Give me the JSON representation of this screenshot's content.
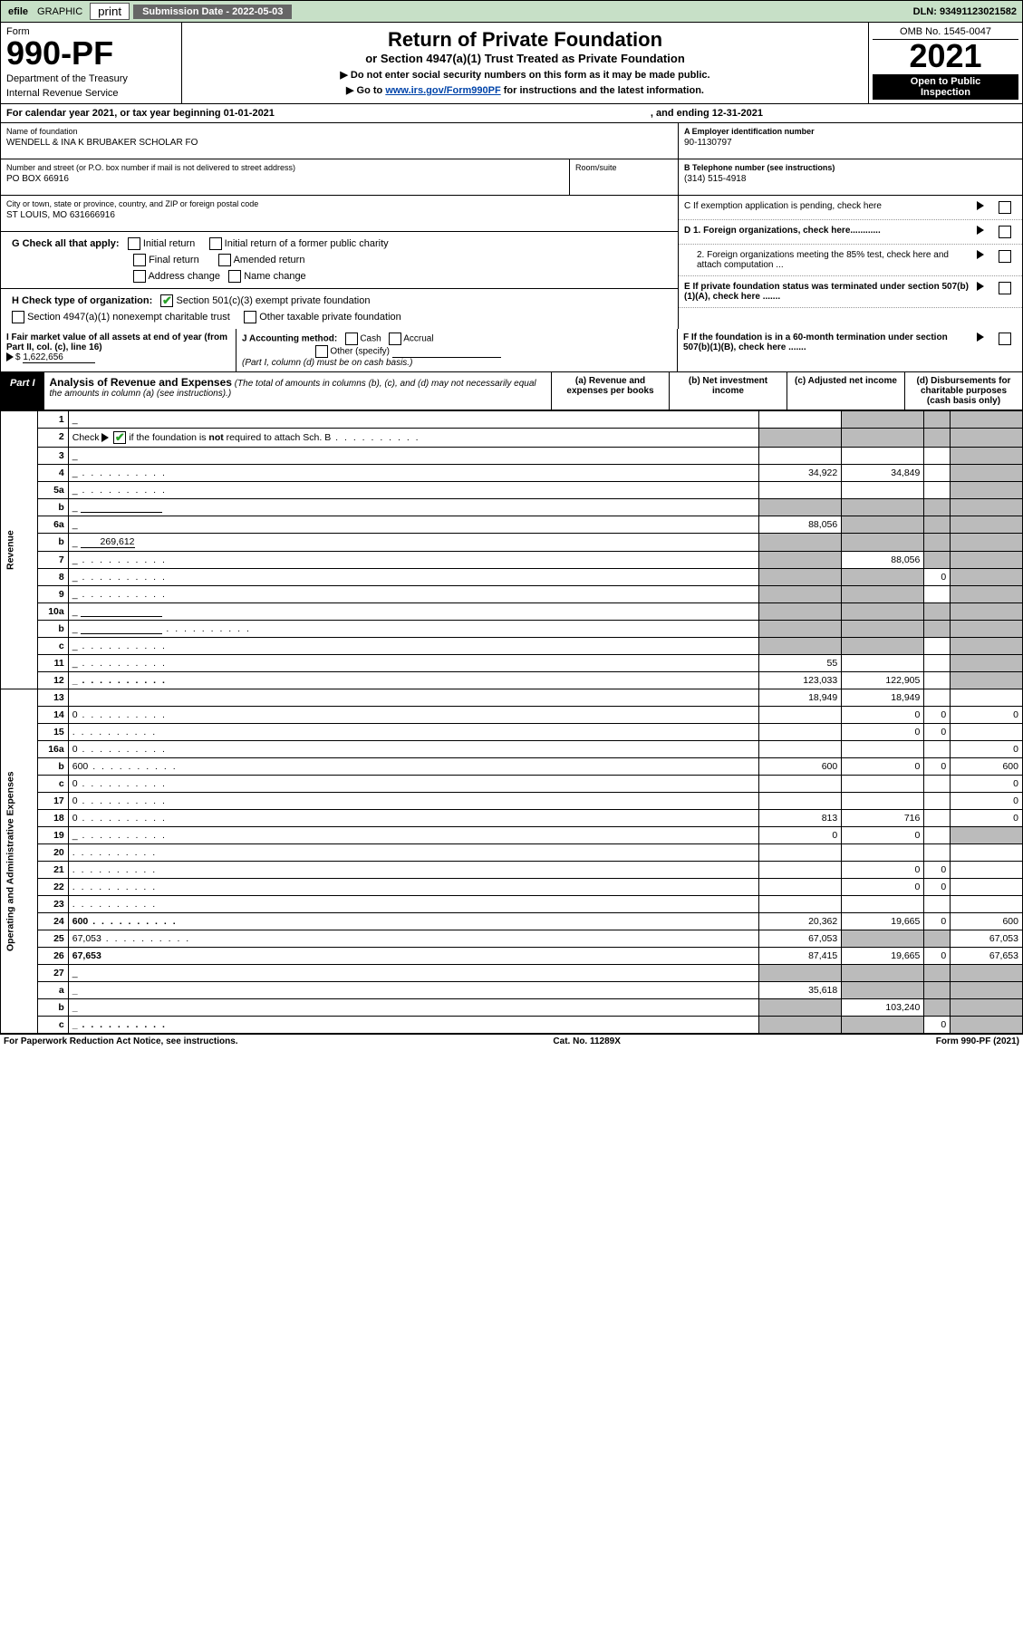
{
  "topbar": {
    "efile": "efile",
    "graphic": "GRAPHIC",
    "print": "print",
    "subdate_lbl": "Submission Date - 2022-05-03",
    "dln": "DLN: 93491123021582"
  },
  "header": {
    "form": "Form",
    "num": "990-PF",
    "dept": "Department of the Treasury",
    "irs": "Internal Revenue Service",
    "title1": "Return of Private Foundation",
    "title2": "or Section 4947(a)(1) Trust Treated as Private Foundation",
    "note1": "▶ Do not enter social security numbers on this form as it may be made public.",
    "note2_pre": "▶ Go to ",
    "note2_link": "www.irs.gov/Form990PF",
    "note2_post": " for instructions and the latest information.",
    "omb": "OMB No. 1545-0047",
    "year": "2021",
    "open1": "Open to Public",
    "open2": "Inspection"
  },
  "calyear": {
    "pre": "For calendar year 2021, or tax year beginning 01-01-2021",
    "post": ", and ending 12-31-2021"
  },
  "id": {
    "name_lbl": "Name of foundation",
    "name_val": "WENDELL & INA K BRUBAKER SCHOLAR FO",
    "addr_lbl": "Number and street (or P.O. box number if mail is not delivered to street address)",
    "addr_val": "PO BOX 66916",
    "room_lbl": "Room/suite",
    "city_lbl": "City or town, state or province, country, and ZIP or foreign postal code",
    "city_val": "ST LOUIS, MO  631666916",
    "ein_lbl": "A Employer identification number",
    "ein_val": "90-1130797",
    "tel_lbl": "B Telephone number (see instructions)",
    "tel_val": "(314) 515-4918",
    "c_lbl": "C If exemption application is pending, check here",
    "d1": "D 1. Foreign organizations, check here............",
    "d2": "2. Foreign organizations meeting the 85% test, check here and attach computation ...",
    "e": "E If private foundation status was terminated under section 507(b)(1)(A), check here .......",
    "f": "F If the foundation is in a 60-month termination under section 507(b)(1)(B), check here .......",
    "g_lbl": "G Check all that apply:",
    "g_initial": "Initial return",
    "g_final": "Final return",
    "g_addr": "Address change",
    "g_initpub": "Initial return of a former public charity",
    "g_amend": "Amended return",
    "g_name": "Name change",
    "h_lbl": "H Check type of organization:",
    "h_501c3": "Section 501(c)(3) exempt private foundation",
    "h_4947": "Section 4947(a)(1) nonexempt charitable trust",
    "h_other": "Other taxable private foundation",
    "i_lbl": "I Fair market value of all assets at end of year (from Part II, col. (c), line 16)",
    "i_val": "1,622,656",
    "j_lbl": "J Accounting method:",
    "j_cash": "Cash",
    "j_accrual": "Accrual",
    "j_other": "Other (specify)",
    "j_note": "(Part I, column (d) must be on cash basis.)"
  },
  "part1": {
    "label": "Part I",
    "title": "Analysis of Revenue and Expenses",
    "subtitle": " (The total of amounts in columns (b), (c), and (d) may not necessarily equal the amounts in column (a) (see instructions).)",
    "col_a": "(a)    Revenue and expenses per books",
    "col_b": "(b)    Net investment income",
    "col_c": "(c)    Adjusted net income",
    "col_d": "(d)    Disbursements for charitable purposes (cash basis only)"
  },
  "sections": {
    "revenue": "Revenue",
    "opex": "Operating and Administrative Expenses"
  },
  "rows": [
    {
      "n": "1",
      "d": "_",
      "a": "",
      "b": "_",
      "c": "_"
    },
    {
      "n": "2",
      "d": "_",
      "a": "_",
      "b": "_",
      "c": "_",
      "bold": false,
      "checkmark": true,
      "dots": true
    },
    {
      "n": "3",
      "d": "_",
      "a": "",
      "b": "",
      "c": ""
    },
    {
      "n": "4",
      "d": "_",
      "a": "34,922",
      "b": "34,849",
      "c": "",
      "dots": true
    },
    {
      "n": "5a",
      "d": "_",
      "a": "",
      "b": "",
      "c": "",
      "dots": true
    },
    {
      "n": "b",
      "d": "_",
      "a": "_",
      "b": "_",
      "c": "_",
      "inline": true
    },
    {
      "n": "6a",
      "d": "_",
      "a": "88,056",
      "b": "_",
      "c": "_"
    },
    {
      "n": "b",
      "d": "_",
      "a": "_",
      "b": "_",
      "c": "_",
      "inline_val": "269,612"
    },
    {
      "n": "7",
      "d": "_",
      "a": "_",
      "b": "88,056",
      "c": "_",
      "dots": true
    },
    {
      "n": "8",
      "d": "_",
      "a": "_",
      "b": "_",
      "c": "0",
      "dots": true
    },
    {
      "n": "9",
      "d": "_",
      "a": "_",
      "b": "_",
      "c": "",
      "dots": true
    },
    {
      "n": "10a",
      "d": "_",
      "a": "_",
      "b": "_",
      "c": "_",
      "inline": true
    },
    {
      "n": "b",
      "d": "_",
      "a": "_",
      "b": "_",
      "c": "_",
      "inline": true,
      "dots": true
    },
    {
      "n": "c",
      "d": "_",
      "a": "_",
      "b": "_",
      "c": "",
      "dots": true
    },
    {
      "n": "11",
      "d": "_",
      "a": "55",
      "b": "",
      "c": "",
      "dots": true
    },
    {
      "n": "12",
      "d": "_",
      "a": "123,033",
      "b": "122,905",
      "c": "",
      "bold": true,
      "dots": true
    },
    {
      "n": "13",
      "d": "",
      "a": "18,949",
      "b": "18,949",
      "c": ""
    },
    {
      "n": "14",
      "d": "0",
      "a": "",
      "b": "0",
      "c": "0",
      "dots": true
    },
    {
      "n": "15",
      "d": "",
      "a": "",
      "b": "0",
      "c": "0",
      "dots": true
    },
    {
      "n": "16a",
      "d": "0",
      "a": "",
      "b": "",
      "c": "",
      "dots": true
    },
    {
      "n": "b",
      "d": "600",
      "a": "600",
      "b": "0",
      "c": "0",
      "dots": true
    },
    {
      "n": "c",
      "d": "0",
      "a": "",
      "b": "",
      "c": "",
      "dots": true
    },
    {
      "n": "17",
      "d": "0",
      "a": "",
      "b": "",
      "c": "",
      "dots": true
    },
    {
      "n": "18",
      "d": "0",
      "a": "813",
      "b": "716",
      "c": "",
      "dots": true
    },
    {
      "n": "19",
      "d": "_",
      "a": "0",
      "b": "0",
      "c": "",
      "dots": true
    },
    {
      "n": "20",
      "d": "",
      "a": "",
      "b": "",
      "c": "",
      "dots": true
    },
    {
      "n": "21",
      "d": "",
      "a": "",
      "b": "0",
      "c": "0",
      "dots": true
    },
    {
      "n": "22",
      "d": "",
      "a": "",
      "b": "0",
      "c": "0",
      "dots": true
    },
    {
      "n": "23",
      "d": "",
      "a": "",
      "b": "",
      "c": "",
      "dots": true
    },
    {
      "n": "24",
      "d": "600",
      "a": "20,362",
      "b": "19,665",
      "c": "0",
      "bold": true,
      "dots": true
    },
    {
      "n": "25",
      "d": "67,053",
      "a": "67,053",
      "b": "_",
      "c": "_",
      "dots": true
    },
    {
      "n": "26",
      "d": "67,653",
      "a": "87,415",
      "b": "19,665",
      "c": "0",
      "bold": true
    },
    {
      "n": "27",
      "d": "_",
      "a": "_",
      "b": "_",
      "c": "_"
    },
    {
      "n": "a",
      "d": "_",
      "a": "35,618",
      "b": "_",
      "c": "_",
      "bold": true
    },
    {
      "n": "b",
      "d": "_",
      "a": "_",
      "b": "103,240",
      "c": "_",
      "bold": true
    },
    {
      "n": "c",
      "d": "_",
      "a": "_",
      "b": "_",
      "c": "0",
      "bold": true,
      "dots": true
    }
  ],
  "foot": {
    "left": "For Paperwork Reduction Act Notice, see instructions.",
    "mid": "Cat. No. 11289X",
    "right": "Form 990-PF (2021)"
  }
}
